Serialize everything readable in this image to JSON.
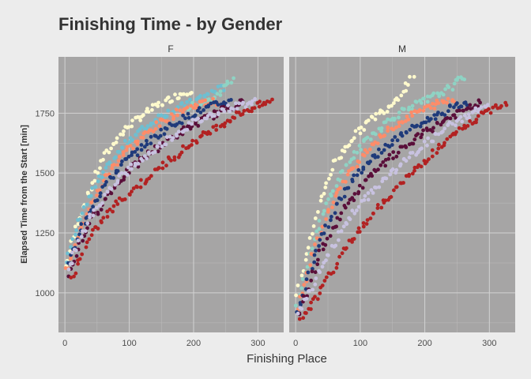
{
  "chart_data": {
    "type": "scatter",
    "title": "Finishing Time - by Gender",
    "xlabel": "Finishing Place",
    "ylabel": "Elapsed Time from the Start [min]",
    "xlim": [
      -10,
      340
    ],
    "ylim": [
      835,
      1985
    ],
    "x_ticks": [
      0,
      100,
      200,
      300
    ],
    "y_ticks": [
      1000,
      1250,
      1500,
      1750
    ],
    "grid": true,
    "legend": "none",
    "panels": [
      {
        "label": "F",
        "curves": [
          {
            "color": "#fffacd",
            "points": [
              [
                2,
                1110
              ],
              [
                20,
                1300
              ],
              [
                40,
                1440
              ],
              [
                60,
                1560
              ],
              [
                80,
                1640
              ],
              [
                100,
                1700
              ],
              [
                120,
                1740
              ],
              [
                150,
                1790
              ],
              [
                180,
                1830
              ],
              [
                200,
                1850
              ]
            ]
          },
          {
            "color": "#6ebfd1",
            "points": [
              [
                3,
                1130
              ],
              [
                25,
                1320
              ],
              [
                50,
                1460
              ],
              [
                75,
                1560
              ],
              [
                100,
                1640
              ],
              [
                150,
                1740
              ],
              [
                200,
                1800
              ],
              [
                230,
                1840
              ],
              [
                250,
                1860
              ]
            ]
          },
          {
            "color": "#8fd3c4",
            "points": [
              [
                190,
                1770
              ],
              [
                220,
                1800
              ],
              [
                240,
                1830
              ],
              [
                255,
                1880
              ],
              [
                265,
                1910
              ]
            ]
          },
          {
            "color": "#ff8c69",
            "points": [
              [
                2,
                1090
              ],
              [
                30,
                1300
              ],
              [
                60,
                1470
              ],
              [
                90,
                1580
              ],
              [
                120,
                1650
              ],
              [
                150,
                1710
              ],
              [
                180,
                1760
              ],
              [
                210,
                1790
              ],
              [
                240,
                1800
              ]
            ]
          },
          {
            "color": "#1f3a7a",
            "points": [
              [
                4,
                1110
              ],
              [
                30,
                1300
              ],
              [
                60,
                1440
              ],
              [
                90,
                1540
              ],
              [
                120,
                1610
              ],
              [
                160,
                1690
              ],
              [
                200,
                1750
              ],
              [
                240,
                1790
              ],
              [
                260,
                1800
              ]
            ]
          },
          {
            "color": "#5a0f3a",
            "points": [
              [
                5,
                1080
              ],
              [
                35,
                1280
              ],
              [
                70,
                1420
              ],
              [
                100,
                1510
              ],
              [
                140,
                1600
              ],
              [
                180,
                1670
              ],
              [
                220,
                1730
              ],
              [
                260,
                1780
              ],
              [
                280,
                1800
              ]
            ]
          },
          {
            "color": "#c8c2e0",
            "points": [
              [
                4,
                1100
              ],
              [
                40,
                1320
              ],
              [
                80,
                1470
              ],
              [
                120,
                1560
              ],
              [
                160,
                1640
              ],
              [
                200,
                1710
              ],
              [
                240,
                1760
              ],
              [
                280,
                1790
              ],
              [
                300,
                1800
              ]
            ]
          },
          {
            "color": "#b22222",
            "points": [
              [
                10,
                1060
              ],
              [
                40,
                1240
              ],
              [
                80,
                1370
              ],
              [
                120,
                1460
              ],
              [
                160,
                1550
              ],
              [
                200,
                1630
              ],
              [
                240,
                1700
              ],
              [
                280,
                1760
              ],
              [
                310,
                1790
              ],
              [
                325,
                1800
              ]
            ]
          }
        ]
      },
      {
        "label": "M",
        "curves": [
          {
            "color": "#fffacd",
            "points": [
              [
                2,
                1000
              ],
              [
                20,
                1200
              ],
              [
                40,
                1400
              ],
              [
                60,
                1540
              ],
              [
                80,
                1620
              ],
              [
                100,
                1680
              ],
              [
                120,
                1730
              ],
              [
                140,
                1770
              ],
              [
                160,
                1820
              ],
              [
                175,
                1880
              ],
              [
                185,
                1920
              ]
            ]
          },
          {
            "color": "#8fd3c4",
            "points": [
              [
                2,
                960
              ],
              [
                20,
                1150
              ],
              [
                50,
                1390
              ],
              [
                80,
                1540
              ],
              [
                110,
                1640
              ],
              [
                140,
                1710
              ],
              [
                170,
                1770
              ],
              [
                200,
                1800
              ],
              [
                230,
                1840
              ],
              [
                250,
                1880
              ],
              [
                265,
                1910
              ]
            ]
          },
          {
            "color": "#ff8c69",
            "points": [
              [
                3,
                940
              ],
              [
                25,
                1150
              ],
              [
                55,
                1370
              ],
              [
                85,
                1510
              ],
              [
                115,
                1610
              ],
              [
                150,
                1690
              ],
              [
                185,
                1750
              ],
              [
                220,
                1790
              ],
              [
                250,
                1810
              ]
            ]
          },
          {
            "color": "#1f3a7a",
            "points": [
              [
                3,
                920
              ],
              [
                30,
                1160
              ],
              [
                65,
                1380
              ],
              [
                95,
                1500
              ],
              [
                130,
                1590
              ],
              [
                170,
                1670
              ],
              [
                210,
                1730
              ],
              [
                250,
                1780
              ],
              [
                270,
                1800
              ]
            ]
          },
          {
            "color": "#5a0f3a",
            "points": [
              [
                4,
                900
              ],
              [
                35,
                1150
              ],
              [
                75,
                1350
              ],
              [
                110,
                1470
              ],
              [
                150,
                1570
              ],
              [
                190,
                1650
              ],
              [
                230,
                1720
              ],
              [
                270,
                1770
              ],
              [
                290,
                1800
              ]
            ]
          },
          {
            "color": "#c8c2e0",
            "points": [
              [
                5,
                910
              ],
              [
                40,
                1110
              ],
              [
                80,
                1300
              ],
              [
                120,
                1430
              ],
              [
                160,
                1530
              ],
              [
                200,
                1620
              ],
              [
                240,
                1700
              ],
              [
                280,
                1760
              ],
              [
                300,
                1790
              ]
            ]
          },
          {
            "color": "#b22222",
            "points": [
              [
                8,
                880
              ],
              [
                40,
                1010
              ],
              [
                80,
                1200
              ],
              [
                110,
                1300
              ],
              [
                140,
                1390
              ],
              [
                180,
                1500
              ],
              [
                220,
                1600
              ],
              [
                260,
                1690
              ],
              [
                300,
                1760
              ],
              [
                320,
                1790
              ],
              [
                330,
                1800
              ]
            ]
          }
        ]
      }
    ]
  }
}
